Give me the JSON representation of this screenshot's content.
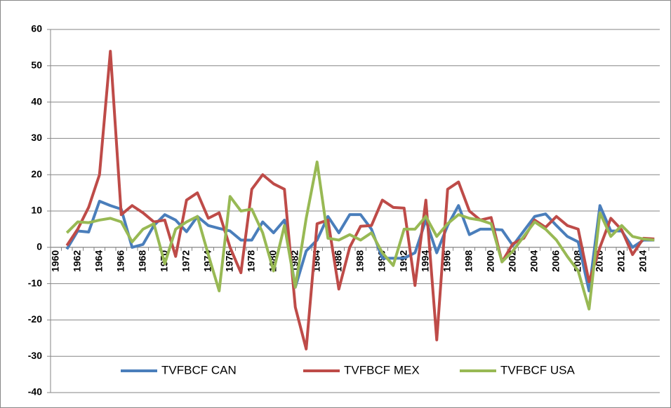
{
  "chart_data": {
    "type": "line",
    "categories": [
      "1960",
      null,
      "1962",
      null,
      "1964",
      null,
      "1966",
      null,
      "1968",
      null,
      "1970",
      null,
      "1972",
      null,
      "1974",
      null,
      "1976",
      null,
      "1978",
      null,
      "1980",
      null,
      "1982",
      null,
      "1984",
      null,
      "1986",
      null,
      "1988",
      null,
      "1990",
      null,
      "1992",
      null,
      "1994",
      null,
      "1996",
      null,
      "1998",
      null,
      "2000",
      null,
      "2002",
      null,
      "2004",
      null,
      "2006",
      null,
      "2008",
      null,
      "2010",
      null,
      "2012",
      null,
      "2014",
      null
    ],
    "series": [
      {
        "name": "TVFBCF CAN",
        "color": "#4a7ebb",
        "values": [
          null,
          -0.5,
          4.5,
          4.2,
          12.7,
          11.5,
          10.5,
          0,
          0.8,
          6,
          9,
          7.5,
          4.3,
          8.5,
          6,
          5.2,
          4.5,
          2,
          2,
          7,
          4,
          7.5,
          -11,
          -1,
          2,
          8.5,
          4,
          9,
          9,
          5,
          -3,
          -3,
          -3,
          -1.5,
          7.5,
          -1.5,
          6,
          11.5,
          3.5,
          5,
          5,
          4.8,
          0.5,
          4.5,
          8.5,
          9.2,
          6,
          3,
          1.5,
          -12,
          11.5,
          4.5,
          4.5,
          0,
          2,
          2
        ]
      },
      {
        "name": "TVFBCF MEX",
        "color": "#be4b48",
        "values": [
          null,
          0.5,
          5,
          11,
          20,
          54,
          9,
          11.5,
          9.5,
          7,
          7.5,
          -2.5,
          13,
          15,
          8,
          9.5,
          0,
          -7,
          16,
          20,
          17.5,
          16,
          -16.5,
          -28,
          6.5,
          7.5,
          -11.5,
          0,
          5.8,
          6,
          13,
          11,
          10.8,
          -10.5,
          13,
          -25.5,
          16,
          18,
          10,
          7.5,
          8.2,
          -4,
          1,
          2.5,
          7.5,
          5.5,
          8.5,
          6,
          5,
          -9.5,
          0,
          8,
          4.8,
          -2,
          2.5,
          2.3
        ]
      },
      {
        "name": "TVFBCF USA",
        "color": "#98b954",
        "values": [
          null,
          4,
          7,
          6.8,
          7.5,
          8,
          7,
          1.5,
          5,
          6.5,
          -4.5,
          5,
          7,
          8.5,
          -2,
          -12,
          14,
          10,
          10.5,
          4,
          -6.5,
          6,
          -11,
          8,
          23.5,
          2.5,
          2,
          3.5,
          2,
          4,
          -1.5,
          -5,
          5,
          5,
          8.5,
          3,
          6.5,
          9,
          8,
          7.5,
          6.5,
          -4,
          -1,
          3,
          7,
          5,
          2,
          -2.5,
          -6.5,
          -17,
          9.5,
          3,
          6,
          3,
          2.3,
          2
        ]
      }
    ],
    "ylim": [
      -40,
      60
    ],
    "yticks": [
      -40,
      -30,
      -20,
      -10,
      0,
      10,
      20,
      30,
      40,
      50,
      60
    ],
    "grid": true,
    "legend": "bottom"
  }
}
